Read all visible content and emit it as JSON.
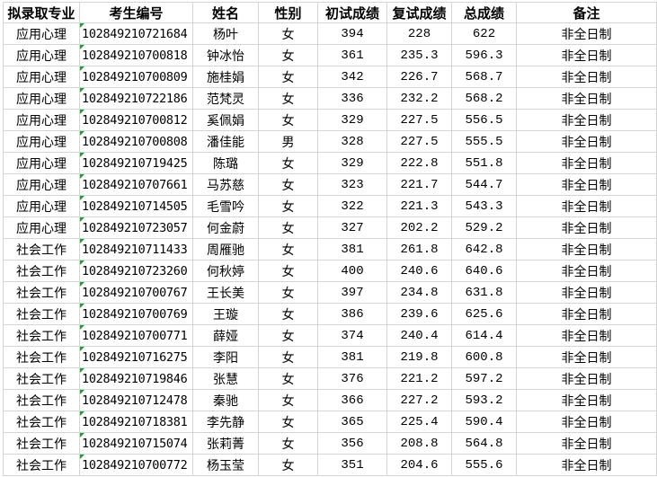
{
  "headers": [
    "拟录取专业",
    "考生编号",
    "姓名",
    "性别",
    "初试成绩",
    "复试成绩",
    "总成绩",
    "备注"
  ],
  "colors": {
    "grid": "#d4d4d4",
    "error_indicator": "#1e9e2e"
  },
  "rows": [
    [
      "应用心理",
      "102849210721684",
      "杨叶",
      "女",
      "394",
      "228",
      "622",
      "非全日制"
    ],
    [
      "应用心理",
      "102849210700818",
      "钟冰怡",
      "女",
      "361",
      "235.3",
      "596.3",
      "非全日制"
    ],
    [
      "应用心理",
      "102849210700809",
      "施桂娟",
      "女",
      "342",
      "226.7",
      "568.7",
      "非全日制"
    ],
    [
      "应用心理",
      "102849210722186",
      "范梵灵",
      "女",
      "336",
      "232.2",
      "568.2",
      "非全日制"
    ],
    [
      "应用心理",
      "102849210700812",
      "奚佩娟",
      "女",
      "329",
      "227.5",
      "556.5",
      "非全日制"
    ],
    [
      "应用心理",
      "102849210700808",
      "潘佳能",
      "男",
      "328",
      "227.5",
      "555.5",
      "非全日制"
    ],
    [
      "应用心理",
      "102849210719425",
      "陈璐",
      "女",
      "329",
      "222.8",
      "551.8",
      "非全日制"
    ],
    [
      "应用心理",
      "102849210707661",
      "马苏慈",
      "女",
      "323",
      "221.7",
      "544.7",
      "非全日制"
    ],
    [
      "应用心理",
      "102849210714505",
      "毛雪吟",
      "女",
      "322",
      "221.3",
      "543.3",
      "非全日制"
    ],
    [
      "应用心理",
      "102849210723057",
      "何金蔚",
      "女",
      "327",
      "202.2",
      "529.2",
      "非全日制"
    ],
    [
      "社会工作",
      "102849210711433",
      "周雁驰",
      "女",
      "381",
      "261.8",
      "642.8",
      "非全日制"
    ],
    [
      "社会工作",
      "102849210723260",
      "何秋婷",
      "女",
      "400",
      "240.6",
      "640.6",
      "非全日制"
    ],
    [
      "社会工作",
      "102849210700767",
      "王长美",
      "女",
      "397",
      "234.8",
      "631.8",
      "非全日制"
    ],
    [
      "社会工作",
      "102849210700769",
      "王璇",
      "女",
      "386",
      "239.6",
      "625.6",
      "非全日制"
    ],
    [
      "社会工作",
      "102849210700771",
      "薛娅",
      "女",
      "374",
      "240.4",
      "614.4",
      "非全日制"
    ],
    [
      "社会工作",
      "102849210716275",
      "李阳",
      "女",
      "381",
      "219.8",
      "600.8",
      "非全日制"
    ],
    [
      "社会工作",
      "102849210719846",
      "张慧",
      "女",
      "376",
      "221.2",
      "597.2",
      "非全日制"
    ],
    [
      "社会工作",
      "102849210712478",
      "秦驰",
      "女",
      "366",
      "227.2",
      "593.2",
      "非全日制"
    ],
    [
      "社会工作",
      "102849210718381",
      "李先静",
      "女",
      "365",
      "225.4",
      "590.4",
      "非全日制"
    ],
    [
      "社会工作",
      "102849210715074",
      "张莉菁",
      "女",
      "356",
      "208.8",
      "564.8",
      "非全日制"
    ],
    [
      "社会工作",
      "102849210700772",
      "杨玉莹",
      "女",
      "351",
      "204.6",
      "555.6",
      "非全日制"
    ]
  ]
}
